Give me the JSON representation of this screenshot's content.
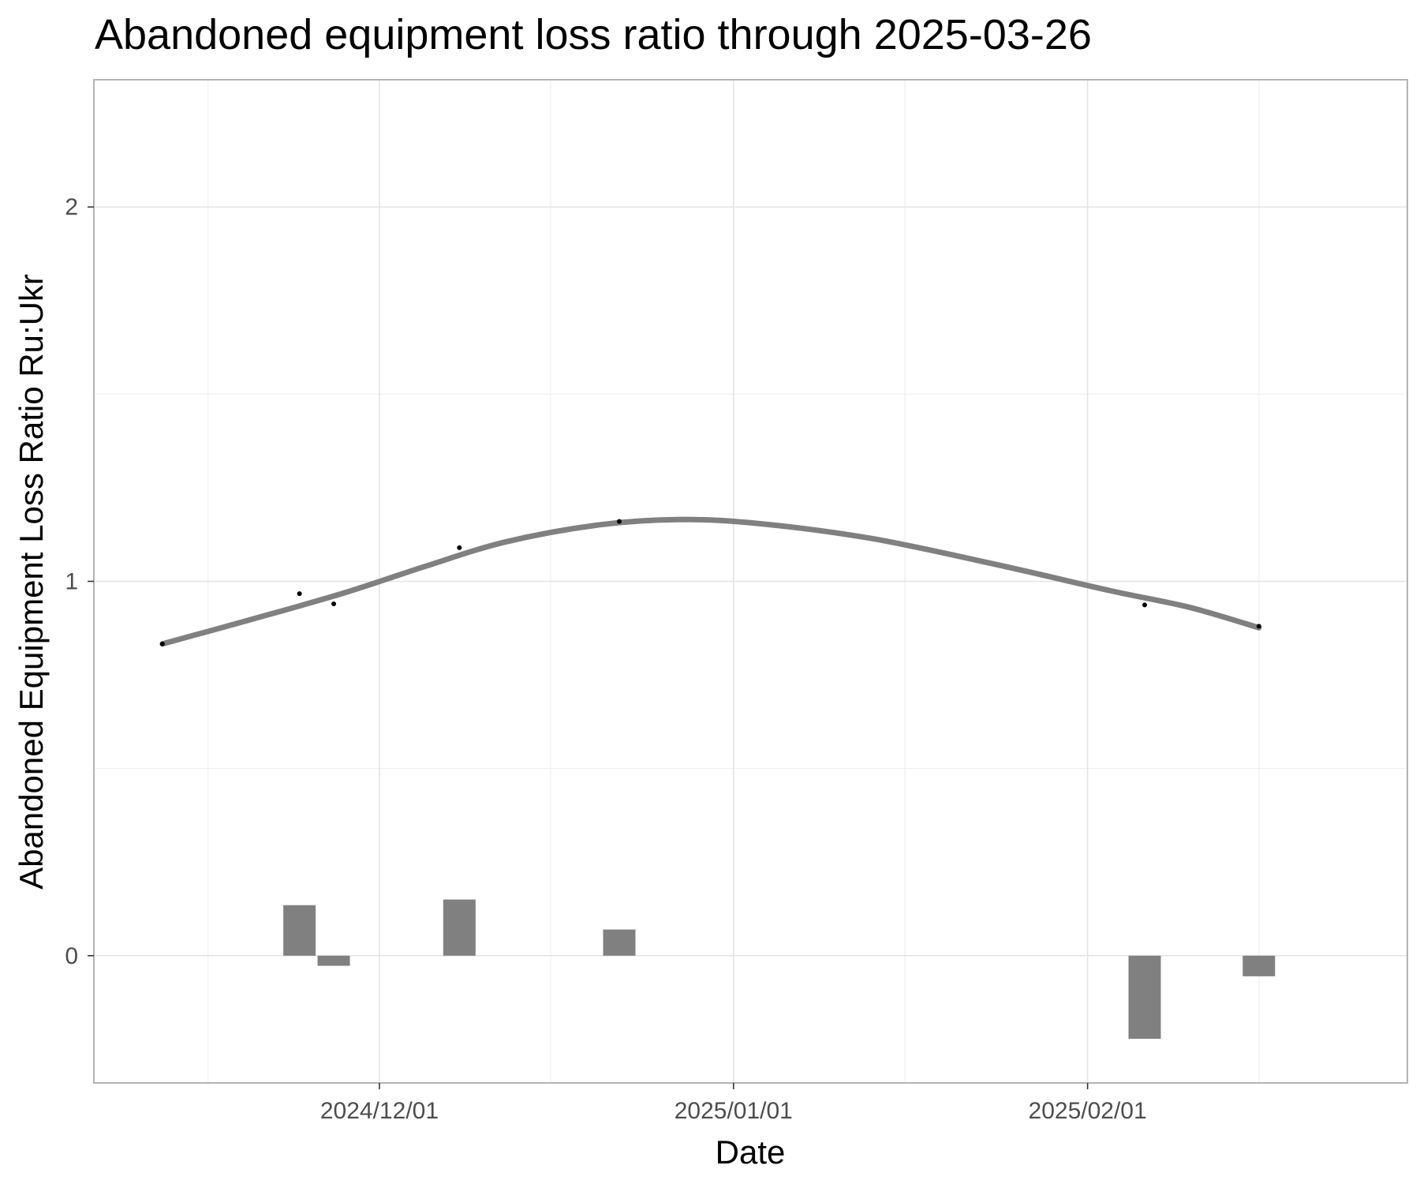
{
  "chart_data": {
    "type": "line",
    "title": "Abandoned equipment loss ratio through 2025-03-26",
    "xlabel": "Date",
    "ylabel": "Abandoned Equipment Loss Ratio Ru:Ukr",
    "x_tick_labels": [
      "2024/12/01",
      "2025/01/01",
      "2025/02/01"
    ],
    "x_ticks": [
      "2024-12-01",
      "2025-01-01",
      "2025-02-01"
    ],
    "x_minor_ticks": [
      "2024-11-16",
      "2024-12-16",
      "2025-01-16",
      "2025-02-16"
    ],
    "y_tick_labels": [
      "0",
      "1",
      "2"
    ],
    "y_ticks": [
      0,
      1,
      2
    ],
    "y_minor_ticks": [
      0.5,
      1.5
    ],
    "xlim": [
      "2024-11-06",
      "2025-03-01"
    ],
    "ylim": [
      -0.34,
      2.34
    ],
    "grid": true,
    "legend": "none",
    "series": [
      {
        "kind": "points",
        "color": "#000000",
        "points": [
          {
            "x": "2024-11-12",
            "y": 0.833
          },
          {
            "x": "2024-11-24",
            "y": 0.967
          },
          {
            "x": "2024-11-27",
            "y": 0.94
          },
          {
            "x": "2024-12-08",
            "y": 1.09
          },
          {
            "x": "2024-12-22",
            "y": 1.16
          },
          {
            "x": "2025-02-06",
            "y": 0.937
          },
          {
            "x": "2025-02-16",
            "y": 0.88
          }
        ]
      },
      {
        "kind": "smooth",
        "color": "#808080",
        "points": [
          {
            "x": "2024-11-12",
            "y": 0.833
          },
          {
            "x": "2024-11-20",
            "y": 0.9
          },
          {
            "x": "2024-11-28",
            "y": 0.97
          },
          {
            "x": "2024-12-05",
            "y": 1.04
          },
          {
            "x": "2024-12-12",
            "y": 1.105
          },
          {
            "x": "2024-12-20",
            "y": 1.15
          },
          {
            "x": "2024-12-27",
            "y": 1.165
          },
          {
            "x": "2025-01-03",
            "y": 1.155
          },
          {
            "x": "2025-01-13",
            "y": 1.115
          },
          {
            "x": "2025-01-24",
            "y": 1.045
          },
          {
            "x": "2025-02-03",
            "y": 0.975
          },
          {
            "x": "2025-02-10",
            "y": 0.93
          },
          {
            "x": "2025-02-16",
            "y": 0.876
          }
        ]
      },
      {
        "kind": "bars",
        "color": "#808080",
        "points": [
          {
            "x": "2024-11-24",
            "y": 0.135
          },
          {
            "x": "2024-11-27",
            "y": -0.027
          },
          {
            "x": "2024-12-08",
            "y": 0.15
          },
          {
            "x": "2024-12-22",
            "y": 0.07
          },
          {
            "x": "2025-02-06",
            "y": -0.222
          },
          {
            "x": "2025-02-16",
            "y": -0.055
          }
        ]
      }
    ]
  }
}
